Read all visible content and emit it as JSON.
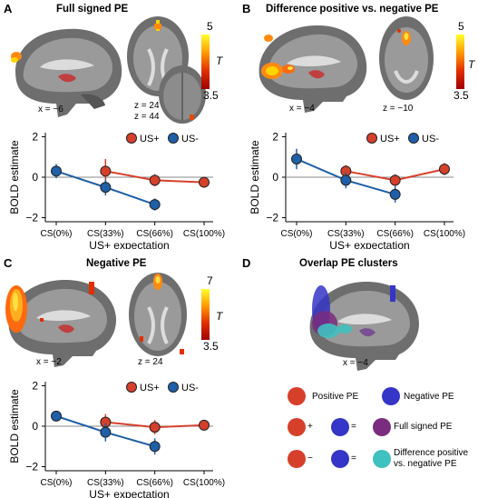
{
  "panels": {
    "A": {
      "letter": "A",
      "title": "Full signed PE",
      "coords": [
        "x = −6",
        "z = 24",
        "z = 44"
      ],
      "colorbar": {
        "max": "5",
        "min": "3.5",
        "t": "T"
      }
    },
    "B": {
      "letter": "B",
      "title": "Difference positive vs. negative PE",
      "coords": [
        "x = −4",
        "z = −10"
      ],
      "colorbar": {
        "max": "5",
        "min": "3.5",
        "t": "T"
      }
    },
    "C": {
      "letter": "C",
      "title": "Negative PE",
      "coords": [
        "x = −2",
        "z = 24"
      ],
      "colorbar": {
        "max": "7",
        "min": "3.5",
        "t": "T"
      }
    },
    "D": {
      "letter": "D",
      "title": "Overlap PE clusters",
      "coords": [
        "x = −4"
      ],
      "legend": {
        "positive": "Positive PE",
        "negative": "Negative PE",
        "plus": "+",
        "minus": "−",
        "equals": "=",
        "full": "Full signed PE",
        "diff_line1": "Difference positive",
        "diff_line2": "vs. negative PE"
      }
    }
  },
  "colors": {
    "us_plus": "#d6402b",
    "us_minus": "#1f5fa8",
    "purple": "#7a2c7e",
    "cyan": "#3fc1c0",
    "blue_dot": "#3535c8"
  },
  "chart_data": [
    {
      "type": "line",
      "panel": "A",
      "categories": [
        "CS(0%)",
        "CS(33%)",
        "CS(66%)",
        "CS(100%)"
      ],
      "xlabel": "US+ expectation",
      "ylabel": "BOLD estimate",
      "ylim": [
        -2.2,
        2.2
      ],
      "yticks": [
        "2",
        "0",
        "−2"
      ],
      "legend_position": "top-right",
      "series": [
        {
          "name": "US+",
          "values": [
            null,
            0.3,
            -0.15,
            -0.25
          ],
          "err": [
            null,
            0.6,
            0.3,
            0.25
          ]
        },
        {
          "name": "US-",
          "values": [
            0.3,
            -0.5,
            -1.35,
            null
          ],
          "err": [
            0.35,
            0.4,
            0.3,
            null
          ]
        }
      ]
    },
    {
      "type": "line",
      "panel": "B",
      "categories": [
        "CS(0%)",
        "CS(33%)",
        "CS(66%)",
        "CS(100%)"
      ],
      "xlabel": "US+ expectation",
      "ylabel": "BOLD estimate",
      "ylim": [
        -2.2,
        2.2
      ],
      "yticks": [
        "2",
        "0",
        "−2"
      ],
      "legend_position": "top-right",
      "series": [
        {
          "name": "US+",
          "values": [
            null,
            0.3,
            -0.15,
            0.4
          ],
          "err": [
            null,
            0.3,
            0.3,
            0.3
          ]
        },
        {
          "name": "US-",
          "values": [
            0.9,
            -0.15,
            -0.85,
            null
          ],
          "err": [
            0.5,
            0.4,
            0.4,
            null
          ]
        }
      ]
    },
    {
      "type": "line",
      "panel": "C",
      "categories": [
        "CS(0%)",
        "CS(33%)",
        "CS(66%)",
        "CS(100%)"
      ],
      "xlabel": "US+ expectation",
      "ylabel": "BOLD estimate",
      "ylim": [
        -2.2,
        2.2
      ],
      "yticks": [
        "2",
        "0",
        "−2"
      ],
      "legend_position": "top-right",
      "series": [
        {
          "name": "US+",
          "values": [
            null,
            0.2,
            -0.05,
            0.05
          ],
          "err": [
            null,
            0.4,
            0.35,
            0.15
          ]
        },
        {
          "name": "US-",
          "values": [
            0.5,
            -0.3,
            -1.0,
            null
          ],
          "err": [
            0.25,
            0.45,
            0.4,
            null
          ]
        }
      ]
    }
  ]
}
